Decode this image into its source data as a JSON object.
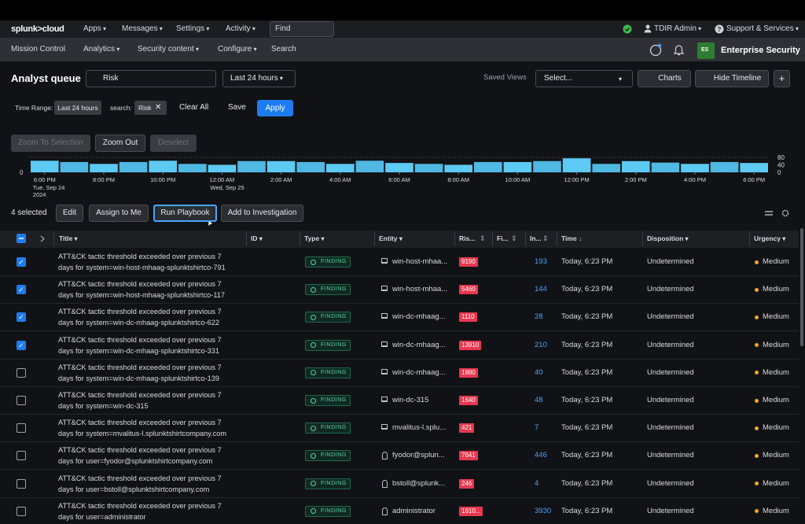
{
  "nav": {
    "logo": "splunk>cloud",
    "menus": [
      "Apps",
      "Messages",
      "Settings",
      "Activity"
    ],
    "find": "Find",
    "user": "TDIR Admin",
    "support": "Support & Services"
  },
  "subnav": {
    "items": [
      "Mission Control",
      "Analytics",
      "Security content",
      "Configure",
      "Search"
    ],
    "app_badge": "ES",
    "app_name": "Enterprise Security"
  },
  "toolbar": {
    "title": "Analyst queue",
    "search": "Risk",
    "range": "Last 24 hours",
    "saved_views_label": "Saved Views",
    "saved_views": "Select...",
    "charts": "Charts",
    "hide_timeline": "Hide Timeline",
    "add": "+"
  },
  "filters": {
    "time_range_label": "Time Range:",
    "time_range": "Last 24 hours",
    "search_label": "search:",
    "search": "Risk",
    "clear": "Clear All",
    "save": "Save",
    "apply": "Apply"
  },
  "zoom": {
    "buttons": [
      "Zoom To Selection",
      "Zoom Out",
      "Deselect"
    ],
    "disabled": [
      true,
      false,
      true
    ]
  },
  "timeline": {
    "type": "bar",
    "values": [
      62,
      55,
      45,
      55,
      62,
      45,
      40,
      60,
      60,
      55,
      45,
      62,
      50,
      45,
      40,
      55,
      55,
      60,
      75,
      45,
      60,
      52,
      45,
      55,
      50
    ],
    "ylim": [
      0,
      80
    ],
    "yticks": [
      0,
      40,
      80
    ],
    "left_ticks": [
      0
    ],
    "xlabels": [
      {
        "time": "6:00 PM",
        "date": "Tue, Sep 24",
        "year": "2024"
      },
      {
        "time": "8:00 PM"
      },
      {
        "time": "10:00 PM"
      },
      {
        "time": "12:00 AM",
        "date": "Wed, Sep 25"
      },
      {
        "time": "2:00 AM"
      },
      {
        "time": "4:00 AM"
      },
      {
        "time": "6:00 AM"
      },
      {
        "time": "8:00 AM"
      },
      {
        "time": "10:00 AM"
      },
      {
        "time": "12:00 PM"
      },
      {
        "time": "2:00 PM"
      },
      {
        "time": "4:00 PM"
      },
      {
        "time": "6:00 PM"
      }
    ]
  },
  "actions": {
    "selected": "4 selected",
    "buttons": [
      "Edit",
      "Assign to Me",
      "Run Playbook",
      "Add to Investigation"
    ]
  },
  "table": {
    "columns": [
      "Title",
      "ID",
      "Type",
      "Entity",
      "Ris...",
      "Fi...",
      "In...",
      "Time",
      "Disposition",
      "Urgency"
    ],
    "rows": [
      {
        "checked": true,
        "title": [
          "ATT&CK tactic threshold exceeded over previous 7",
          "days for system=win-host-mhaag-splunktshirtco-791"
        ],
        "type": "FINDING",
        "entity_icon": "host",
        "entity": "win-host-mhaa...",
        "risk": "9190",
        "in": "193",
        "time": "Today, 6:23 PM",
        "disposition": "Undetermined",
        "urgency": "Medium"
      },
      {
        "checked": true,
        "title": [
          "ATT&CK tactic threshold exceeded over previous 7",
          "days for system=win-host-mhaag-splunktshirtco-117"
        ],
        "type": "FINDING",
        "entity_icon": "host",
        "entity": "win-host-mhaa...",
        "risk": "5460",
        "in": "144",
        "time": "Today, 6:23 PM",
        "disposition": "Undetermined",
        "urgency": "Medium"
      },
      {
        "checked": true,
        "title": [
          "ATT&CK tactic threshold exceeded over previous 7",
          "days for system=win-dc-mhaag-splunktshirtco-622"
        ],
        "type": "FINDING",
        "entity_icon": "host",
        "entity": "win-dc-mhaag...",
        "risk": "1110",
        "in": "28",
        "time": "Today, 6:23 PM",
        "disposition": "Undetermined",
        "urgency": "Medium"
      },
      {
        "checked": true,
        "title": [
          "ATT&CK tactic threshold exceeded over previous 7",
          "days for system=win-dc-mhaag-splunktshirtco-331"
        ],
        "type": "FINDING",
        "entity_icon": "host",
        "entity": "win-dc-mhaag...",
        "risk": "13910",
        "in": "210",
        "time": "Today, 6:23 PM",
        "disposition": "Undetermined",
        "urgency": "Medium"
      },
      {
        "checked": false,
        "title": [
          "ATT&CK tactic threshold exceeded over previous 7",
          "days for system=win-dc-mhaag-splunktshirtco-139"
        ],
        "type": "FINDING",
        "entity_icon": "host",
        "entity": "win-dc-mhaag...",
        "risk": "1880",
        "in": "40",
        "time": "Today, 6:23 PM",
        "disposition": "Undetermined",
        "urgency": "Medium"
      },
      {
        "checked": false,
        "title": [
          "ATT&CK tactic threshold exceeded over previous 7",
          "days for system=win-dc-315"
        ],
        "type": "FINDING",
        "entity_icon": "host",
        "entity": "win-dc-315",
        "risk": "1640",
        "in": "48",
        "time": "Today, 6:23 PM",
        "disposition": "Undetermined",
        "urgency": "Medium"
      },
      {
        "checked": false,
        "title": [
          "ATT&CK tactic threshold exceeded over previous 7",
          "days for system=mvalitus-l.splunktshirtcompany.com"
        ],
        "type": "FINDING",
        "entity_icon": "host",
        "entity": "mvalitus-l.splu...",
        "risk": "421",
        "in": "7",
        "time": "Today, 6:23 PM",
        "disposition": "Undetermined",
        "urgency": "Medium"
      },
      {
        "checked": false,
        "title": [
          "ATT&CK tactic threshold exceeded over previous 7",
          "days for user=fyodor@splunktshirtcompany.com"
        ],
        "type": "FINDING",
        "entity_icon": "user",
        "entity": "fyodor@splun...",
        "risk": "7641",
        "in": "446",
        "time": "Today, 6:23 PM",
        "disposition": "Undetermined",
        "urgency": "Medium"
      },
      {
        "checked": false,
        "title": [
          "ATT&CK tactic threshold exceeded over previous 7",
          "days for user=bstoll@splunktshirtcompany.com"
        ],
        "type": "FINDING",
        "entity_icon": "user",
        "entity": "bstoll@splunk...",
        "risk": "246",
        "in": "4",
        "time": "Today, 6:23 PM",
        "disposition": "Undetermined",
        "urgency": "Medium"
      },
      {
        "checked": false,
        "title": [
          "ATT&CK tactic threshold exceeded over previous 7",
          "days for user=administrator"
        ],
        "type": "FINDING",
        "entity_icon": "user",
        "entity": "administrator",
        "risk": "1610...",
        "in": "3930",
        "time": "Today, 6:23 PM",
        "disposition": "Undetermined",
        "urgency": "Medium"
      }
    ]
  }
}
